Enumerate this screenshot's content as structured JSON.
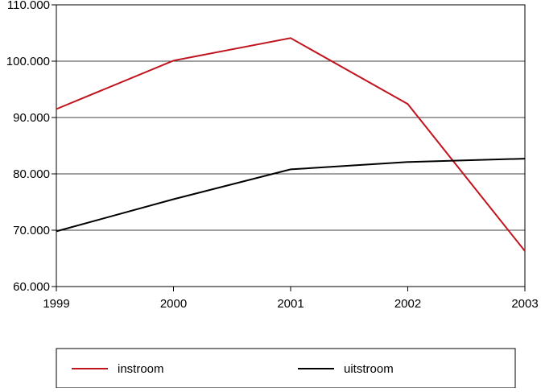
{
  "chart_data": {
    "type": "line",
    "title": "",
    "xlabel": "",
    "ylabel": "",
    "categories": [
      "1999",
      "2000",
      "2001",
      "2002",
      "2003"
    ],
    "ylim": [
      60000,
      110000
    ],
    "yticks": [
      60000,
      70000,
      80000,
      90000,
      100000,
      110000
    ],
    "ytick_labels": [
      "60.000",
      "70.000",
      "80.000",
      "90.000",
      "100.000",
      "110.000"
    ],
    "grid": true,
    "legend_position": "bottom",
    "series": [
      {
        "name": "instroom",
        "color": "#c0141e",
        "values": [
          91500,
          100100,
          104100,
          92400,
          66300
        ]
      },
      {
        "name": "uitstroom",
        "color": "#000000",
        "values": [
          69800,
          75500,
          80800,
          82100,
          82700
        ]
      }
    ]
  }
}
